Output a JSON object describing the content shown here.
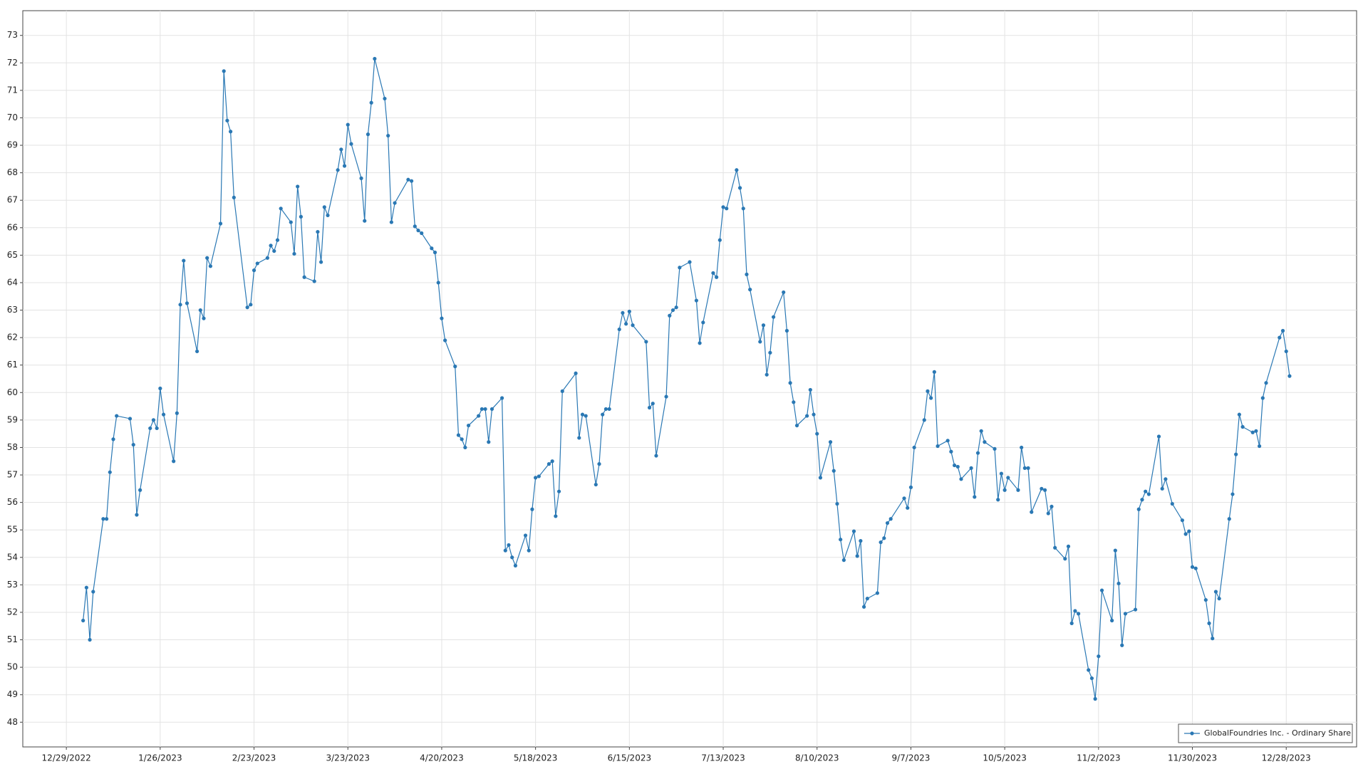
{
  "chart_data": {
    "type": "line",
    "x": [
      "1/3/2023",
      "1/4/2023",
      "1/5/2023",
      "1/6/2023",
      "1/9/2023",
      "1/10/2023",
      "1/11/2023",
      "1/12/2023",
      "1/13/2023",
      "1/17/2023",
      "1/18/2023",
      "1/19/2023",
      "1/20/2023",
      "1/23/2023",
      "1/24/2023",
      "1/25/2023",
      "1/26/2023",
      "1/27/2023",
      "1/30/2023",
      "1/31/2023",
      "2/1/2023",
      "2/2/2023",
      "2/3/2023",
      "2/6/2023",
      "2/7/2023",
      "2/8/2023",
      "2/9/2023",
      "2/10/2023",
      "2/13/2023",
      "2/14/2023",
      "2/15/2023",
      "2/16/2023",
      "2/17/2023",
      "2/21/2023",
      "2/22/2023",
      "2/23/2023",
      "2/24/2023",
      "2/27/2023",
      "2/28/2023",
      "3/1/2023",
      "3/2/2023",
      "3/3/2023",
      "3/6/2023",
      "3/7/2023",
      "3/8/2023",
      "3/9/2023",
      "3/10/2023",
      "3/13/2023",
      "3/14/2023",
      "3/15/2023",
      "3/16/2023",
      "3/17/2023",
      "3/20/2023",
      "3/21/2023",
      "3/22/2023",
      "3/23/2023",
      "3/24/2023",
      "3/27/2023",
      "3/28/2023",
      "3/29/2023",
      "3/30/2023",
      "3/31/2023",
      "4/3/2023",
      "4/4/2023",
      "4/5/2023",
      "4/6/2023",
      "4/10/2023",
      "4/11/2023",
      "4/12/2023",
      "4/13/2023",
      "4/14/2023",
      "4/17/2023",
      "4/18/2023",
      "4/19/2023",
      "4/20/2023",
      "4/21/2023",
      "4/24/2023",
      "4/25/2023",
      "4/26/2023",
      "4/27/2023",
      "4/28/2023",
      "5/1/2023",
      "5/2/2023",
      "5/3/2023",
      "5/4/2023",
      "5/5/2023",
      "5/8/2023",
      "5/9/2023",
      "5/10/2023",
      "5/11/2023",
      "5/12/2023",
      "5/15/2023",
      "5/16/2023",
      "5/17/2023",
      "5/18/2023",
      "5/19/2023",
      "5/22/2023",
      "5/23/2023",
      "5/24/2023",
      "5/25/2023",
      "5/26/2023",
      "5/30/2023",
      "5/31/2023",
      "6/1/2023",
      "6/2/2023",
      "6/5/2023",
      "6/6/2023",
      "6/7/2023",
      "6/8/2023",
      "6/9/2023",
      "6/12/2023",
      "6/13/2023",
      "6/14/2023",
      "6/15/2023",
      "6/16/2023",
      "6/20/2023",
      "6/21/2023",
      "6/22/2023",
      "6/23/2023",
      "6/26/2023",
      "6/27/2023",
      "6/28/2023",
      "6/29/2023",
      "6/30/2023",
      "7/3/2023",
      "7/5/2023",
      "7/6/2023",
      "7/7/2023",
      "7/10/2023",
      "7/11/2023",
      "7/12/2023",
      "7/13/2023",
      "7/14/2023",
      "7/17/2023",
      "7/18/2023",
      "7/19/2023",
      "7/20/2023",
      "7/21/2023",
      "7/24/2023",
      "7/25/2023",
      "7/26/2023",
      "7/27/2023",
      "7/28/2023",
      "7/31/2023",
      "8/1/2023",
      "8/2/2023",
      "8/3/2023",
      "8/4/2023",
      "8/7/2023",
      "8/8/2023",
      "8/9/2023",
      "8/10/2023",
      "8/11/2023",
      "8/14/2023",
      "8/15/2023",
      "8/16/2023",
      "8/17/2023",
      "8/18/2023",
      "8/21/2023",
      "8/22/2023",
      "8/23/2023",
      "8/24/2023",
      "8/25/2023",
      "8/28/2023",
      "8/29/2023",
      "8/30/2023",
      "8/31/2023",
      "9/1/2023",
      "9/5/2023",
      "9/6/2023",
      "9/7/2023",
      "9/8/2023",
      "9/11/2023",
      "9/12/2023",
      "9/13/2023",
      "9/14/2023",
      "9/15/2023",
      "9/18/2023",
      "9/19/2023",
      "9/20/2023",
      "9/21/2023",
      "9/22/2023",
      "9/25/2023",
      "9/26/2023",
      "9/27/2023",
      "9/28/2023",
      "9/29/2023",
      "10/2/2023",
      "10/3/2023",
      "10/4/2023",
      "10/5/2023",
      "10/6/2023",
      "10/9/2023",
      "10/10/2023",
      "10/11/2023",
      "10/12/2023",
      "10/13/2023",
      "10/16/2023",
      "10/17/2023",
      "10/18/2023",
      "10/19/2023",
      "10/20/2023",
      "10/23/2023",
      "10/24/2023",
      "10/25/2023",
      "10/26/2023",
      "10/27/2023",
      "10/30/2023",
      "10/31/2023",
      "11/1/2023",
      "11/2/2023",
      "11/3/2023",
      "11/6/2023",
      "11/7/2023",
      "11/8/2023",
      "11/9/2023",
      "11/10/2023",
      "11/13/2023",
      "11/14/2023",
      "11/15/2023",
      "11/16/2023",
      "11/17/2023",
      "11/20/2023",
      "11/21/2023",
      "11/22/2023",
      "11/24/2023",
      "11/27/2023",
      "11/28/2023",
      "11/29/2023",
      "11/30/2023",
      "12/1/2023",
      "12/4/2023",
      "12/5/2023",
      "12/6/2023",
      "12/7/2023",
      "12/8/2023",
      "12/11/2023",
      "12/12/2023",
      "12/13/2023",
      "12/14/2023",
      "12/15/2023",
      "12/18/2023",
      "12/19/2023",
      "12/20/2023",
      "12/21/2023",
      "12/22/2023",
      "12/26/2023",
      "12/27/2023",
      "12/28/2023",
      "12/29/2023"
    ],
    "series": [
      {
        "name": "GlobalFoundries Inc. - Ordinary Share",
        "color": "#2a78b4",
        "values": [
          51.7,
          52.9,
          51.0,
          52.75,
          55.4,
          55.4,
          57.1,
          58.3,
          59.15,
          59.05,
          58.1,
          55.55,
          56.45,
          58.7,
          59.0,
          58.7,
          60.15,
          59.2,
          57.5,
          59.25,
          63.2,
          64.8,
          63.25,
          61.5,
          63.0,
          62.7,
          64.9,
          64.6,
          66.15,
          71.7,
          69.9,
          69.5,
          67.1,
          63.1,
          63.2,
          64.45,
          64.7,
          64.9,
          65.35,
          65.15,
          65.55,
          66.7,
          66.2,
          65.05,
          67.5,
          66.4,
          64.2,
          64.05,
          65.85,
          64.75,
          66.75,
          66.45,
          68.1,
          68.85,
          68.25,
          69.75,
          69.05,
          67.8,
          66.25,
          69.4,
          70.55,
          72.15,
          70.7,
          69.35,
          66.2,
          66.9,
          67.75,
          67.7,
          66.05,
          65.9,
          65.8,
          65.25,
          65.1,
          64.0,
          62.7,
          61.9,
          60.95,
          58.45,
          58.3,
          58.0,
          58.8,
          59.15,
          59.4,
          59.4,
          58.2,
          59.4,
          59.8,
          54.25,
          54.45,
          54.0,
          53.7,
          54.8,
          54.25,
          55.75,
          56.9,
          56.95,
          57.4,
          57.5,
          55.5,
          56.4,
          60.05,
          60.7,
          58.35,
          59.2,
          59.15,
          56.65,
          57.4,
          59.2,
          59.4,
          59.4,
          62.3,
          62.9,
          62.5,
          62.95,
          62.45,
          61.85,
          59.45,
          59.6,
          57.7,
          59.85,
          62.8,
          63.0,
          63.1,
          64.55,
          64.75,
          63.35,
          61.8,
          62.55,
          64.35,
          64.2,
          65.55,
          66.75,
          66.7,
          68.1,
          67.45,
          66.7,
          64.3,
          63.75,
          61.85,
          62.45,
          60.65,
          61.45,
          62.75,
          63.65,
          62.25,
          60.35,
          59.65,
          58.8,
          59.15,
          60.1,
          59.2,
          58.5,
          56.9,
          58.2,
          57.15,
          55.95,
          54.65,
          53.9,
          54.95,
          54.05,
          54.6,
          52.2,
          52.5,
          52.7,
          54.55,
          54.7,
          55.25,
          55.4,
          56.15,
          55.8,
          56.55,
          58.0,
          59.0,
          60.05,
          59.8,
          60.75,
          58.05,
          58.25,
          57.85,
          57.35,
          57.3,
          56.85,
          57.25,
          56.2,
          57.8,
          58.6,
          58.2,
          57.95,
          56.1,
          57.05,
          56.45,
          56.9,
          56.45,
          58.0,
          57.25,
          57.25,
          55.65,
          56.5,
          56.45,
          55.6,
          55.85,
          54.35,
          53.95,
          54.4,
          51.6,
          52.05,
          51.95,
          49.9,
          49.6,
          48.85,
          50.4,
          52.8,
          51.7,
          54.25,
          53.05,
          50.8,
          51.95,
          52.1,
          55.75,
          56.1,
          56.4,
          56.3,
          58.4,
          56.5,
          56.85,
          55.95,
          55.35,
          54.85,
          54.95,
          53.65,
          53.6,
          52.45,
          51.6,
          51.05,
          52.75,
          52.5,
          55.4,
          56.3,
          57.75,
          59.2,
          58.75,
          58.55,
          58.6,
          58.05,
          59.8,
          60.35,
          62.0,
          62.25,
          61.5,
          60.6
        ]
      }
    ],
    "xlim": [
      "12/16/2022",
      "1/18/2024"
    ],
    "xticks": [
      "12/29/2022",
      "1/26/2023",
      "2/23/2023",
      "3/23/2023",
      "4/20/2023",
      "5/18/2023",
      "6/15/2023",
      "7/13/2023",
      "8/10/2023",
      "9/7/2023",
      "10/5/2023",
      "11/2/2023",
      "11/30/2023",
      "12/28/2023"
    ],
    "ylim": [
      47.1,
      73.9
    ],
    "yticks": [
      48,
      49,
      50,
      51,
      52,
      53,
      54,
      55,
      56,
      57,
      58,
      59,
      60,
      61,
      62,
      63,
      64,
      65,
      66,
      67,
      68,
      69,
      70,
      71,
      72,
      73
    ],
    "grid": true,
    "legend": "lower right"
  }
}
